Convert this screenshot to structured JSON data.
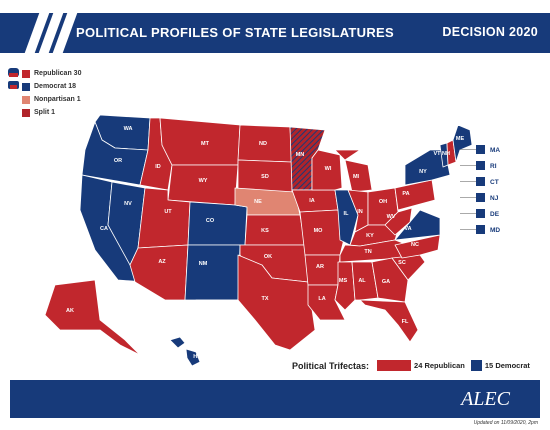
{
  "header": {
    "title": "POLITICAL PROFILES OF STATE LEGISLATURES",
    "subtitle": "DECISION 2020"
  },
  "colors": {
    "republican": "#c1272d",
    "democrat": "#173a7a",
    "nonpartisan": "#e08572",
    "split": "#b0242a",
    "header_bg": "#173a7a"
  },
  "legend": [
    {
      "label": "Republican 30",
      "color": "#c1272d"
    },
    {
      "label": "Democrat 18",
      "color": "#173a7a"
    },
    {
      "label": "Nonpartisan 1",
      "color": "#e08572"
    },
    {
      "label": "Split 1",
      "color": "#b0242a"
    }
  ],
  "northeast_labels": [
    "MA",
    "RI",
    "CT",
    "NJ",
    "DE",
    "MD"
  ],
  "states": {
    "WA": "D",
    "OR": "D",
    "CA": "D",
    "NV": "D",
    "ID": "R",
    "MT": "R",
    "WY": "R",
    "UT": "R",
    "CO": "D",
    "AZ": "R",
    "NM": "D",
    "ND": "R",
    "SD": "R",
    "NE": "N",
    "KS": "R",
    "OK": "R",
    "TX": "R",
    "MN": "S",
    "IA": "R",
    "MO": "R",
    "AR": "R",
    "LA": "R",
    "WI": "R",
    "IL": "D",
    "MI": "R",
    "IN": "R",
    "OH": "R",
    "KY": "R",
    "TN": "R",
    "MS": "R",
    "AL": "R",
    "GA": "R",
    "FL": "R",
    "SC": "R",
    "NC": "R",
    "VA": "D",
    "WV": "R",
    "PA": "R",
    "NY": "D",
    "VT": "D",
    "NH": "R",
    "ME": "D",
    "AK": "R",
    "HI": "D"
  },
  "trifectas": {
    "label": "Political Trifectas:",
    "republican": "24 Republican",
    "democrat": "15 Democrat"
  },
  "footer": {
    "logo": "ALEC",
    "updated": "Updated on 11/09/2020, 2pm"
  }
}
